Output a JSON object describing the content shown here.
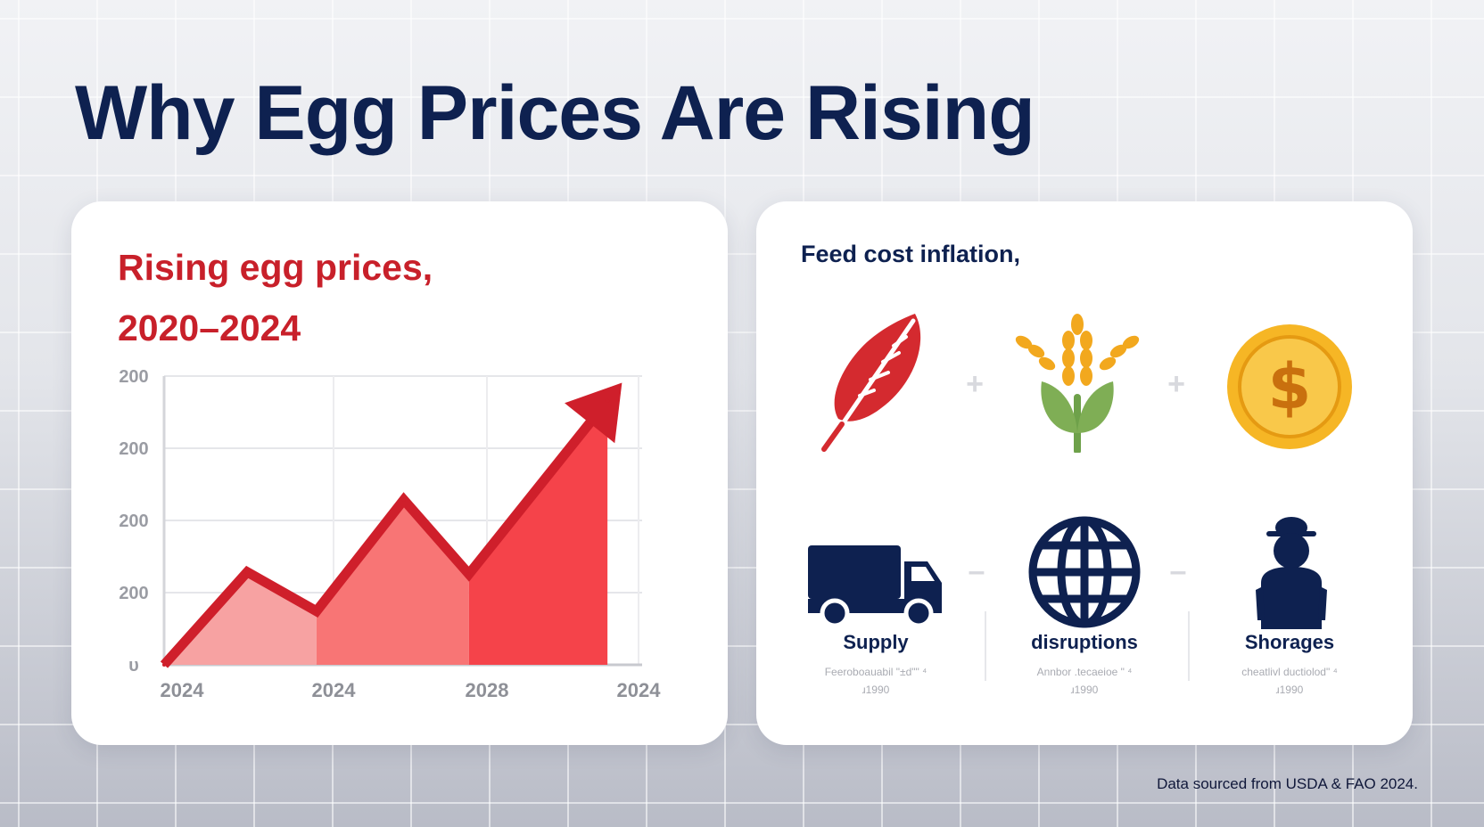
{
  "title": "Why Egg Prices Are Rising",
  "chart_data": {
    "type": "area",
    "title_lines": [
      "Rising egg prices,",
      "2020–2024"
    ],
    "y_tick_labels": [
      "200",
      "200",
      "200",
      "200",
      "υ"
    ],
    "x_tick_labels": [
      "2024",
      "2024",
      "2028",
      "2024"
    ],
    "x": [
      0,
      0.6,
      1.1,
      1.73,
      2.2,
      3.2
    ],
    "values": [
      0,
      45,
      26,
      80,
      44,
      128
    ],
    "ylim": [
      0,
      140
    ],
    "grid": true,
    "colors": {
      "line": "#cf1f2b",
      "fill_light": "#f7a2a2",
      "fill_mid": "#f87575",
      "fill_dark": "#f5434a"
    }
  },
  "feed_panel": {
    "title": "Feed cost inflation,",
    "top_icons": [
      "feather-icon",
      "wheat-icon",
      "dollar-coin-icon"
    ],
    "top_operators": [
      "+",
      "+"
    ],
    "bottom_icons": [
      "truck-icon",
      "globe-icon",
      "worker-icon"
    ],
    "bottom_operators": [
      "–",
      "–"
    ],
    "causes": [
      {
        "label": "Supply",
        "note_line1": "Feeroboauabil \"±d\"\" ⁴",
        "note_line2": "ɹ1990"
      },
      {
        "label": "disruptions",
        "note_line1": "Annbor .tecaeioe \" ⁴",
        "note_line2": "ɹ1990"
      },
      {
        "label": "Shorages",
        "note_line1": "cheatlivl ductiolod\" ⁴",
        "note_line2": "ɹ1990"
      }
    ]
  },
  "source_note": "Data sourced from USDA & FAO 2024."
}
